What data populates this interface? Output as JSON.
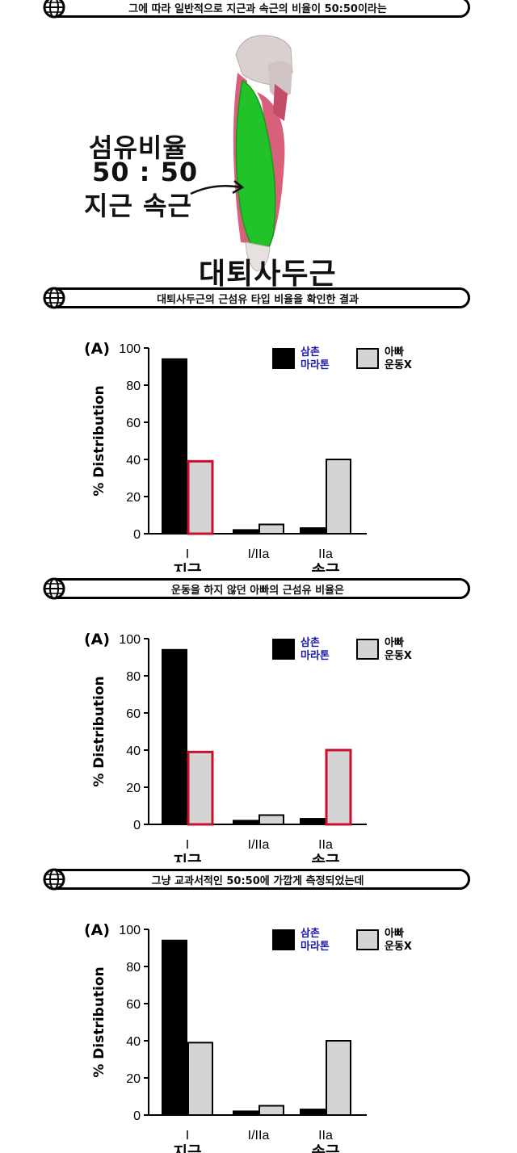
{
  "banners": [
    "그에 따라 일반적으로 지근과 속근의 비율이 50:50이라는",
    "대퇴사두근의 근섬유 타입 비율을 확인한 결과",
    "운동을 하지 않던 아빠의 근섬유 비율은",
    "그냥 교과서적인 50:50에 가깝게 측정되었는데"
  ],
  "hero": {
    "line1": "섬유비율",
    "line2": "50 : 50",
    "line3": "지근 속근",
    "muscle_name": "대퇴사두근"
  },
  "colors": {
    "muscle_green": "#22c22a",
    "muscle_red": "#d8607a",
    "bar_dark": "#000000",
    "bar_light": "#d4d4d4",
    "highlight": "#c8102e",
    "legend_blue": "#1a1aa8"
  },
  "chart_data": [
    {
      "type": "bar",
      "panel_label": "(A)",
      "ylabel": "% Distribution",
      "ylim": [
        0,
        100
      ],
      "yticks": [
        0,
        20,
        40,
        60,
        80,
        100
      ],
      "categories": [
        "I",
        "I/IIa",
        "IIa"
      ],
      "category_sublabels": [
        "지근",
        "",
        "속근"
      ],
      "series": [
        {
          "name": "삼촌 마라톤",
          "values": [
            94,
            2,
            3
          ]
        },
        {
          "name": "아빠 운동X",
          "values": [
            39,
            5,
            40
          ]
        }
      ],
      "highlighted": [
        [
          1,
          0
        ]
      ]
    },
    {
      "type": "bar",
      "panel_label": "(A)",
      "ylabel": "% Distribution",
      "ylim": [
        0,
        100
      ],
      "yticks": [
        0,
        20,
        40,
        60,
        80,
        100
      ],
      "categories": [
        "I",
        "I/IIa",
        "IIa"
      ],
      "category_sublabels": [
        "지근",
        "",
        "속근"
      ],
      "series": [
        {
          "name": "삼촌 마라톤",
          "values": [
            94,
            2,
            3
          ]
        },
        {
          "name": "아빠 운동X",
          "values": [
            39,
            5,
            40
          ]
        }
      ],
      "highlighted": [
        [
          1,
          0
        ],
        [
          1,
          2
        ]
      ]
    },
    {
      "type": "bar",
      "panel_label": "(A)",
      "ylabel": "% Distribution",
      "ylim": [
        0,
        100
      ],
      "yticks": [
        0,
        20,
        40,
        60,
        80,
        100
      ],
      "categories": [
        "I",
        "I/IIa",
        "IIa"
      ],
      "category_sublabels": [
        "지근",
        "",
        "속근"
      ],
      "series": [
        {
          "name": "삼촌 마라톤",
          "values": [
            94,
            2,
            3
          ]
        },
        {
          "name": "아빠 운동X",
          "values": [
            39,
            5,
            40
          ]
        }
      ],
      "highlighted": []
    }
  ]
}
